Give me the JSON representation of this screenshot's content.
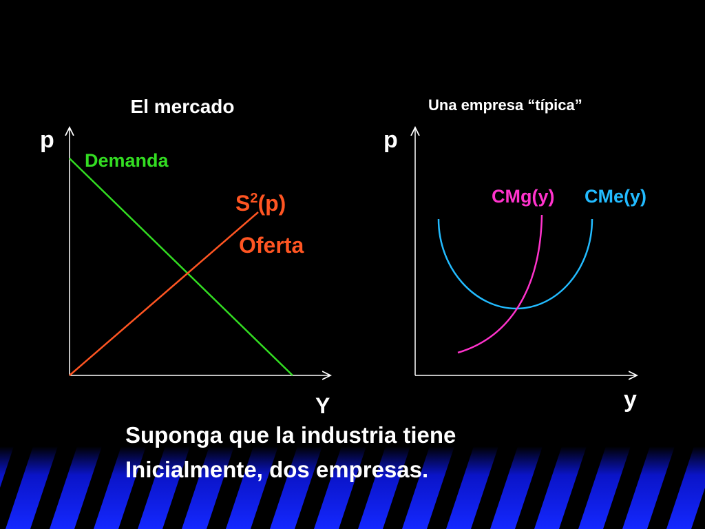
{
  "left_panel": {
    "title": "El mercado",
    "y_axis": "p",
    "x_axis": "Y",
    "demand_label": "Demanda",
    "supply_label": {
      "base": "S",
      "superscript": "2",
      "rest": "(p)"
    },
    "supply_name": "Oferta"
  },
  "right_panel": {
    "title": "Una empresa “típica”",
    "y_axis": "p",
    "x_axis": "y",
    "marginal_cost_label": "CMg(y)",
    "average_cost_label": "CMe(y)"
  },
  "caption": {
    "lines": [
      "Suponga que la industria tiene",
      "Inicialmente, dos empresas."
    ]
  }
}
